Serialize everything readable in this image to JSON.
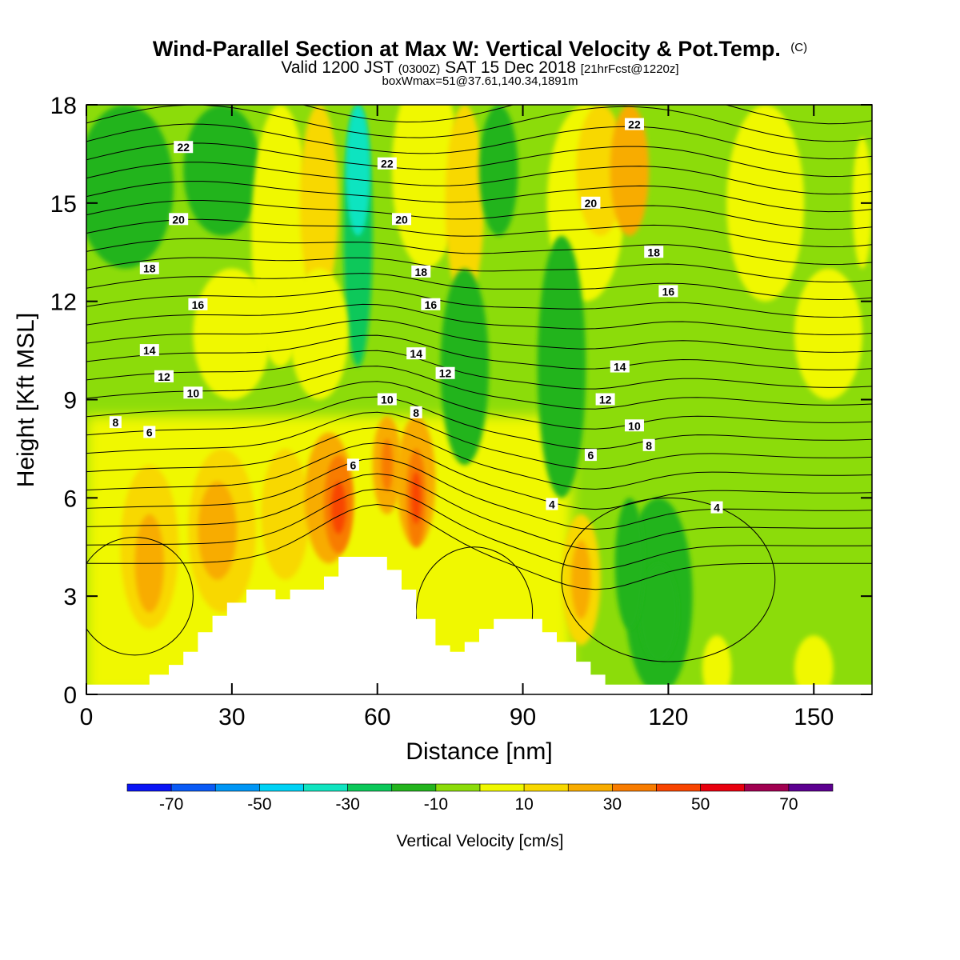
{
  "title": {
    "main": "Wind-Parallel Section at Max W: Vertical Velocity & Pot.Temp.",
    "copyright": "(C)",
    "line2_a": "Valid 1200 JST",
    "line2_b": "(0300Z)",
    "line2_c": "SAT 15 Dec 2018",
    "line2_d": "[21hrFcst@1220z]",
    "line3": "boxWmax=51@37.61,140.34,1891m"
  },
  "chart_data": {
    "type": "heatmap",
    "xlabel": "Distance [nm]",
    "ylabel": "Height [Kft MSL]",
    "xlim": [
      0,
      162
    ],
    "ylim": [
      0,
      18
    ],
    "x_ticks": [
      "0",
      "30",
      "60",
      "90",
      "120",
      "150"
    ],
    "x_tick_values": [
      0,
      30,
      60,
      90,
      120,
      150
    ],
    "y_ticks": [
      "0",
      "3",
      "6",
      "9",
      "12",
      "15",
      "18"
    ],
    "y_tick_values": [
      0,
      3,
      6,
      9,
      12,
      15,
      18
    ],
    "colorbar": {
      "title": "Vertical Velocity [cm/s]",
      "labels": [
        "-70",
        "-50",
        "-30",
        "-10",
        "10",
        "30",
        "50",
        "70"
      ],
      "label_values": [
        -70,
        -50,
        -30,
        -10,
        10,
        30,
        50,
        70
      ],
      "bins": [
        {
          "lo": -80,
          "hi": -70,
          "color": "#0a14f5"
        },
        {
          "lo": -70,
          "hi": -60,
          "color": "#0a5af5"
        },
        {
          "lo": -60,
          "hi": -50,
          "color": "#0096f5"
        },
        {
          "lo": -50,
          "hi": -40,
          "color": "#00d2f5"
        },
        {
          "lo": -40,
          "hi": -30,
          "color": "#10e4c0"
        },
        {
          "lo": -30,
          "hi": -20,
          "color": "#0cc85a"
        },
        {
          "lo": -20,
          "hi": -10,
          "color": "#24b41e"
        },
        {
          "lo": -10,
          "hi": 0,
          "color": "#8cdc0a"
        },
        {
          "lo": 0,
          "hi": 10,
          "color": "#f0f800"
        },
        {
          "lo": 10,
          "hi": 20,
          "color": "#f8d800"
        },
        {
          "lo": 20,
          "hi": 30,
          "color": "#f8ac00"
        },
        {
          "lo": 30,
          "hi": 40,
          "color": "#f87c00"
        },
        {
          "lo": 40,
          "hi": 50,
          "color": "#f84400"
        },
        {
          "lo": 50,
          "hi": 60,
          "color": "#e8000e"
        },
        {
          "lo": 60,
          "hi": 70,
          "color": "#a00050"
        },
        {
          "lo": 70,
          "hi": 80,
          "color": "#5c0090"
        }
      ]
    },
    "vertical_velocity_features_cm_s": [
      {
        "x_nm": 52,
        "z_kft": 5.7,
        "peak": 51
      },
      {
        "x_nm": 68,
        "z_kft": 6.0,
        "peak": 45
      },
      {
        "x_nm": 62,
        "z_kft": 7.0,
        "peak": 30
      },
      {
        "x_nm": 13,
        "z_kft": 4.0,
        "peak": 28
      },
      {
        "x_nm": 26,
        "z_kft": 5.0,
        "peak": 25
      },
      {
        "x_nm": 102,
        "z_kft": 3.5,
        "peak": 30
      },
      {
        "x_nm": 56,
        "z_kft": 15.0,
        "peak": -28
      },
      {
        "x_nm": 118,
        "z_kft": 3.0,
        "peak": -18
      },
      {
        "x_nm": 78,
        "z_kft": 9.0,
        "peak": -18
      },
      {
        "x_nm": 12,
        "z_kft": 16.0,
        "peak": -15
      }
    ],
    "theta_contour_labels": [
      {
        "label": "22",
        "x_nm": 20,
        "z_kft": 16.7
      },
      {
        "label": "22",
        "x_nm": 62,
        "z_kft": 16.2
      },
      {
        "label": "22",
        "x_nm": 113,
        "z_kft": 17.4
      },
      {
        "label": "20",
        "x_nm": 19,
        "z_kft": 14.5
      },
      {
        "label": "20",
        "x_nm": 65,
        "z_kft": 14.5
      },
      {
        "label": "20",
        "x_nm": 104,
        "z_kft": 15.0
      },
      {
        "label": "18",
        "x_nm": 13,
        "z_kft": 13.0
      },
      {
        "label": "18",
        "x_nm": 69,
        "z_kft": 12.9
      },
      {
        "label": "18",
        "x_nm": 117,
        "z_kft": 13.5
      },
      {
        "label": "16",
        "x_nm": 23,
        "z_kft": 11.9
      },
      {
        "label": "16",
        "x_nm": 71,
        "z_kft": 11.9
      },
      {
        "label": "16",
        "x_nm": 120,
        "z_kft": 12.3
      },
      {
        "label": "14",
        "x_nm": 13,
        "z_kft": 10.5
      },
      {
        "label": "14",
        "x_nm": 68,
        "z_kft": 10.4
      },
      {
        "label": "14",
        "x_nm": 110,
        "z_kft": 10.0
      },
      {
        "label": "12",
        "x_nm": 16,
        "z_kft": 9.7
      },
      {
        "label": "12",
        "x_nm": 74,
        "z_kft": 9.8
      },
      {
        "label": "12",
        "x_nm": 107,
        "z_kft": 9.0
      },
      {
        "label": "10",
        "x_nm": 22,
        "z_kft": 9.2
      },
      {
        "label": "10",
        "x_nm": 62,
        "z_kft": 9.0
      },
      {
        "label": "10",
        "x_nm": 113,
        "z_kft": 8.2
      },
      {
        "label": "8",
        "x_nm": 6,
        "z_kft": 8.3
      },
      {
        "label": "8",
        "x_nm": 68,
        "z_kft": 8.6
      },
      {
        "label": "8",
        "x_nm": 116,
        "z_kft": 7.6
      },
      {
        "label": "6",
        "x_nm": 13,
        "z_kft": 8.0
      },
      {
        "label": "6",
        "x_nm": 55,
        "z_kft": 7.0
      },
      {
        "label": "6",
        "x_nm": 104,
        "z_kft": 7.3
      },
      {
        "label": "4",
        "x_nm": 96,
        "z_kft": 5.8
      },
      {
        "label": "4",
        "x_nm": 130,
        "z_kft": 5.7
      }
    ],
    "terrain": [
      {
        "x": 0,
        "z": 0.3
      },
      {
        "x": 13,
        "z": 0.3
      },
      {
        "x": 13,
        "z": 0.6
      },
      {
        "x": 17,
        "z": 0.6
      },
      {
        "x": 17,
        "z": 0.9
      },
      {
        "x": 20,
        "z": 0.9
      },
      {
        "x": 20,
        "z": 1.3
      },
      {
        "x": 23,
        "z": 1.3
      },
      {
        "x": 23,
        "z": 1.9
      },
      {
        "x": 26,
        "z": 1.9
      },
      {
        "x": 26,
        "z": 2.4
      },
      {
        "x": 29,
        "z": 2.4
      },
      {
        "x": 29,
        "z": 2.8
      },
      {
        "x": 33,
        "z": 2.8
      },
      {
        "x": 33,
        "z": 3.2
      },
      {
        "x": 39,
        "z": 3.2
      },
      {
        "x": 39,
        "z": 2.9
      },
      {
        "x": 42,
        "z": 2.9
      },
      {
        "x": 42,
        "z": 3.2
      },
      {
        "x": 49,
        "z": 3.2
      },
      {
        "x": 49,
        "z": 3.6
      },
      {
        "x": 52,
        "z": 3.6
      },
      {
        "x": 52,
        "z": 4.2
      },
      {
        "x": 62,
        "z": 4.2
      },
      {
        "x": 62,
        "z": 3.8
      },
      {
        "x": 65,
        "z": 3.8
      },
      {
        "x": 65,
        "z": 3.2
      },
      {
        "x": 68,
        "z": 3.2
      },
      {
        "x": 68,
        "z": 2.3
      },
      {
        "x": 72,
        "z": 2.3
      },
      {
        "x": 72,
        "z": 1.5
      },
      {
        "x": 75,
        "z": 1.5
      },
      {
        "x": 75,
        "z": 1.3
      },
      {
        "x": 78,
        "z": 1.3
      },
      {
        "x": 78,
        "z": 1.6
      },
      {
        "x": 81,
        "z": 1.6
      },
      {
        "x": 81,
        "z": 2.0
      },
      {
        "x": 84,
        "z": 2.0
      },
      {
        "x": 84,
        "z": 2.3
      },
      {
        "x": 94,
        "z": 2.3
      },
      {
        "x": 94,
        "z": 1.9
      },
      {
        "x": 97,
        "z": 1.9
      },
      {
        "x": 97,
        "z": 1.6
      },
      {
        "x": 101,
        "z": 1.6
      },
      {
        "x": 101,
        "z": 1.0
      },
      {
        "x": 104,
        "z": 1.0
      },
      {
        "x": 104,
        "z": 0.6
      },
      {
        "x": 107,
        "z": 0.6
      },
      {
        "x": 107,
        "z": 0.3
      },
      {
        "x": 162,
        "z": 0.3
      }
    ]
  }
}
